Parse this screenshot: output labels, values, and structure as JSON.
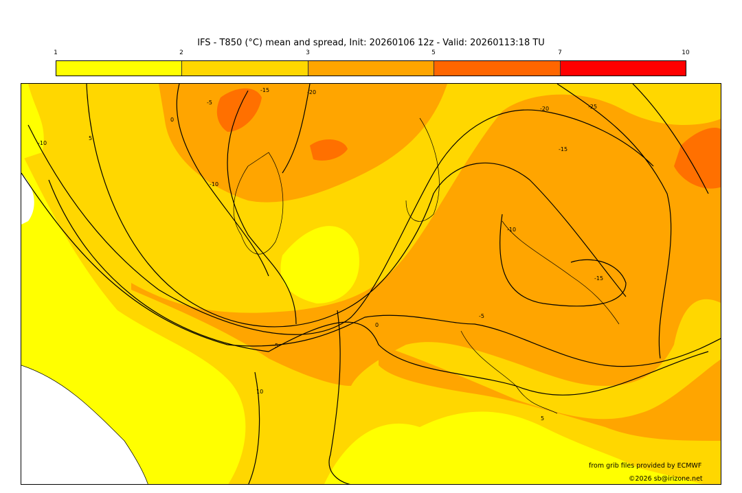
{
  "title": "IFS - T850 (°C) mean and spread, Init: 20260106 12z - Valid: 20260113:18 TU",
  "colorbar": {
    "ticks": [
      "1",
      "2",
      "3",
      "5",
      "7",
      "10"
    ],
    "colors": [
      "#ffff00",
      "#ffd700",
      "#ffa500",
      "#ff6600",
      "#ff0000"
    ]
  },
  "contour_labels": [
    "-10",
    "5",
    "0",
    "-5",
    "-15",
    "-20",
    "-10",
    "-20",
    "-25",
    "-15",
    "-10",
    "-15",
    "-5",
    "0",
    "5",
    "10",
    "5"
  ],
  "credits": {
    "source": "from grib files provided by ECMWF",
    "copyright": "©2026 sb@irizone.net"
  }
}
